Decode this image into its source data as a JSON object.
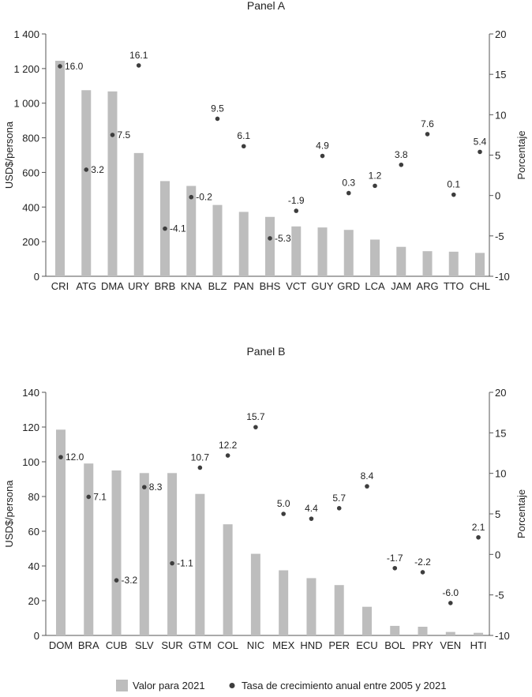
{
  "colors": {
    "bar": "#bdbdbd",
    "dot": "#3d3d3d",
    "axis": "#555555",
    "text": "#222222"
  },
  "legend": {
    "bar_label": "Valor para 2021",
    "dot_label": "Tasa de crecimiento anual entre 2005 y 2021"
  },
  "chart_data": [
    {
      "type": "bar",
      "title": "Panel A",
      "ylabel": "USD$/persona",
      "y2label": "Porcentaje",
      "ylim": [
        0,
        1400
      ],
      "y2lim": [
        -10,
        20
      ],
      "yticks": [
        "0",
        "200",
        "400",
        "600",
        "800",
        "1 000",
        "1 200",
        "1 400"
      ],
      "y2ticks": [
        "-10",
        "-5",
        "0",
        "5",
        "10",
        "15",
        "20"
      ],
      "categories": [
        "CRI",
        "ATG",
        "DMA",
        "URY",
        "BRB",
        "KNA",
        "BLZ",
        "PAN",
        "BHS",
        "VCT",
        "GUY",
        "GRD",
        "LCA",
        "JAM",
        "ARG",
        "TTO",
        "CHL"
      ],
      "series": [
        {
          "name": "Valor para 2021",
          "axis": "left",
          "values": [
            1245,
            1075,
            1068,
            712,
            550,
            522,
            412,
            372,
            343,
            288,
            282,
            268,
            212,
            170,
            145,
            142,
            135
          ]
        },
        {
          "name": "Tasa de crecimiento anual entre 2005 y 2021",
          "axis": "right",
          "values": [
            16.0,
            3.2,
            7.5,
            16.1,
            -4.1,
            -0.2,
            null,
            6.1,
            -5.3,
            -1.9,
            4.9,
            0.3,
            1.2,
            3.8,
            7.6,
            0.1,
            5.4
          ]
        }
      ],
      "dot_labels": [
        "16.0",
        "3.2",
        "7.5",
        "16.1",
        "-4.1",
        "-0.2",
        "9.5",
        "6.1",
        "-5.3",
        "-1.9",
        "4.9",
        "0.3",
        "1.2",
        "3.8",
        "7.6",
        "0.1",
        "5.4"
      ]
    },
    {
      "type": "bar",
      "title": "Panel B",
      "ylabel": "USD$/persona",
      "y2label": "Porcentaje",
      "ylim": [
        0,
        140
      ],
      "y2lim": [
        -10,
        20
      ],
      "yticks": [
        "0",
        "20",
        "40",
        "60",
        "80",
        "100",
        "120",
        "140"
      ],
      "y2ticks": [
        "-10",
        "-5",
        "0",
        "5",
        "10",
        "15",
        "20"
      ],
      "categories": [
        "DOM",
        "BRA",
        "CUB",
        "SLV",
        "SUR",
        "GTM",
        "COL",
        "NIC",
        "MEX",
        "HND",
        "PER",
        "ECU",
        "BOL",
        "PRY",
        "VEN",
        "HTI"
      ],
      "series": [
        {
          "name": "Valor para 2021",
          "axis": "left",
          "values": [
            118.5,
            99,
            95,
            93.5,
            93.5,
            81.5,
            64,
            47,
            37.5,
            33,
            29,
            16.5,
            5.5,
            5,
            2,
            1.5
          ]
        },
        {
          "name": "Tasa de crecimiento anual entre 2005 y 2021",
          "axis": "right",
          "values": [
            12.0,
            7.1,
            -3.2,
            8.3,
            -1.1,
            10.7,
            12.2,
            15.7,
            5.0,
            4.4,
            5.7,
            8.4,
            -1.7,
            -2.2,
            -6.0,
            2.1
          ]
        }
      ],
      "dot_labels": [
        "12.0",
        "7.1",
        "-3.2",
        "8.3",
        "-1.1",
        "10.7",
        "12.2",
        "15.7",
        "5.0",
        "4.4",
        "5.7",
        "8.4",
        "-1.7",
        "-2.2",
        "-6.0",
        "2.1"
      ]
    }
  ]
}
